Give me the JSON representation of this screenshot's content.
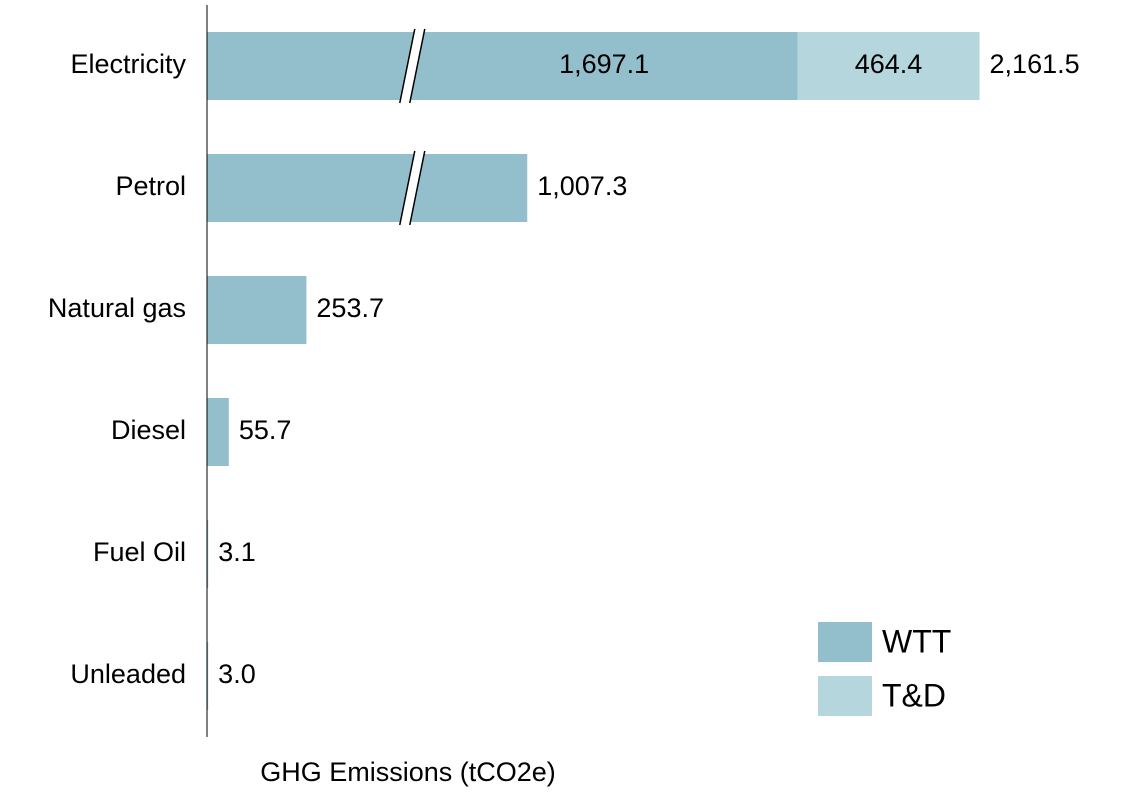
{
  "chart_data": {
    "type": "bar",
    "orientation": "horizontal",
    "stacked": true,
    "x_label": "GHG Emissions (tCO2e)",
    "categories": [
      "Electricity",
      "Petrol",
      "Natural gas",
      "Diesel",
      "Fuel Oil",
      "Unleaded"
    ],
    "series": [
      {
        "name": "WTT",
        "color": "#93bfcc",
        "values": [
          1697.1,
          1007.3,
          253.7,
          55.7,
          3.1,
          3.0
        ],
        "value_labels": [
          "1,697.1",
          "1,007.3",
          "253.7",
          "55.7",
          "3.1",
          "3.0"
        ]
      },
      {
        "name": "T&D",
        "color": "#b6d6dd",
        "values": [
          464.4,
          null,
          null,
          null,
          null,
          null
        ],
        "value_labels": [
          "464.4",
          null,
          null,
          null,
          null,
          null
        ]
      }
    ],
    "totals": [
      2161.5,
      null,
      null,
      null,
      null,
      null
    ],
    "total_labels": [
      "2,161.5",
      null,
      null,
      null,
      null,
      null
    ],
    "xlim": [
      0,
      2400
    ],
    "axis_break": [
      520,
      710
    ],
    "legend": "lower right",
    "grid": false
  }
}
